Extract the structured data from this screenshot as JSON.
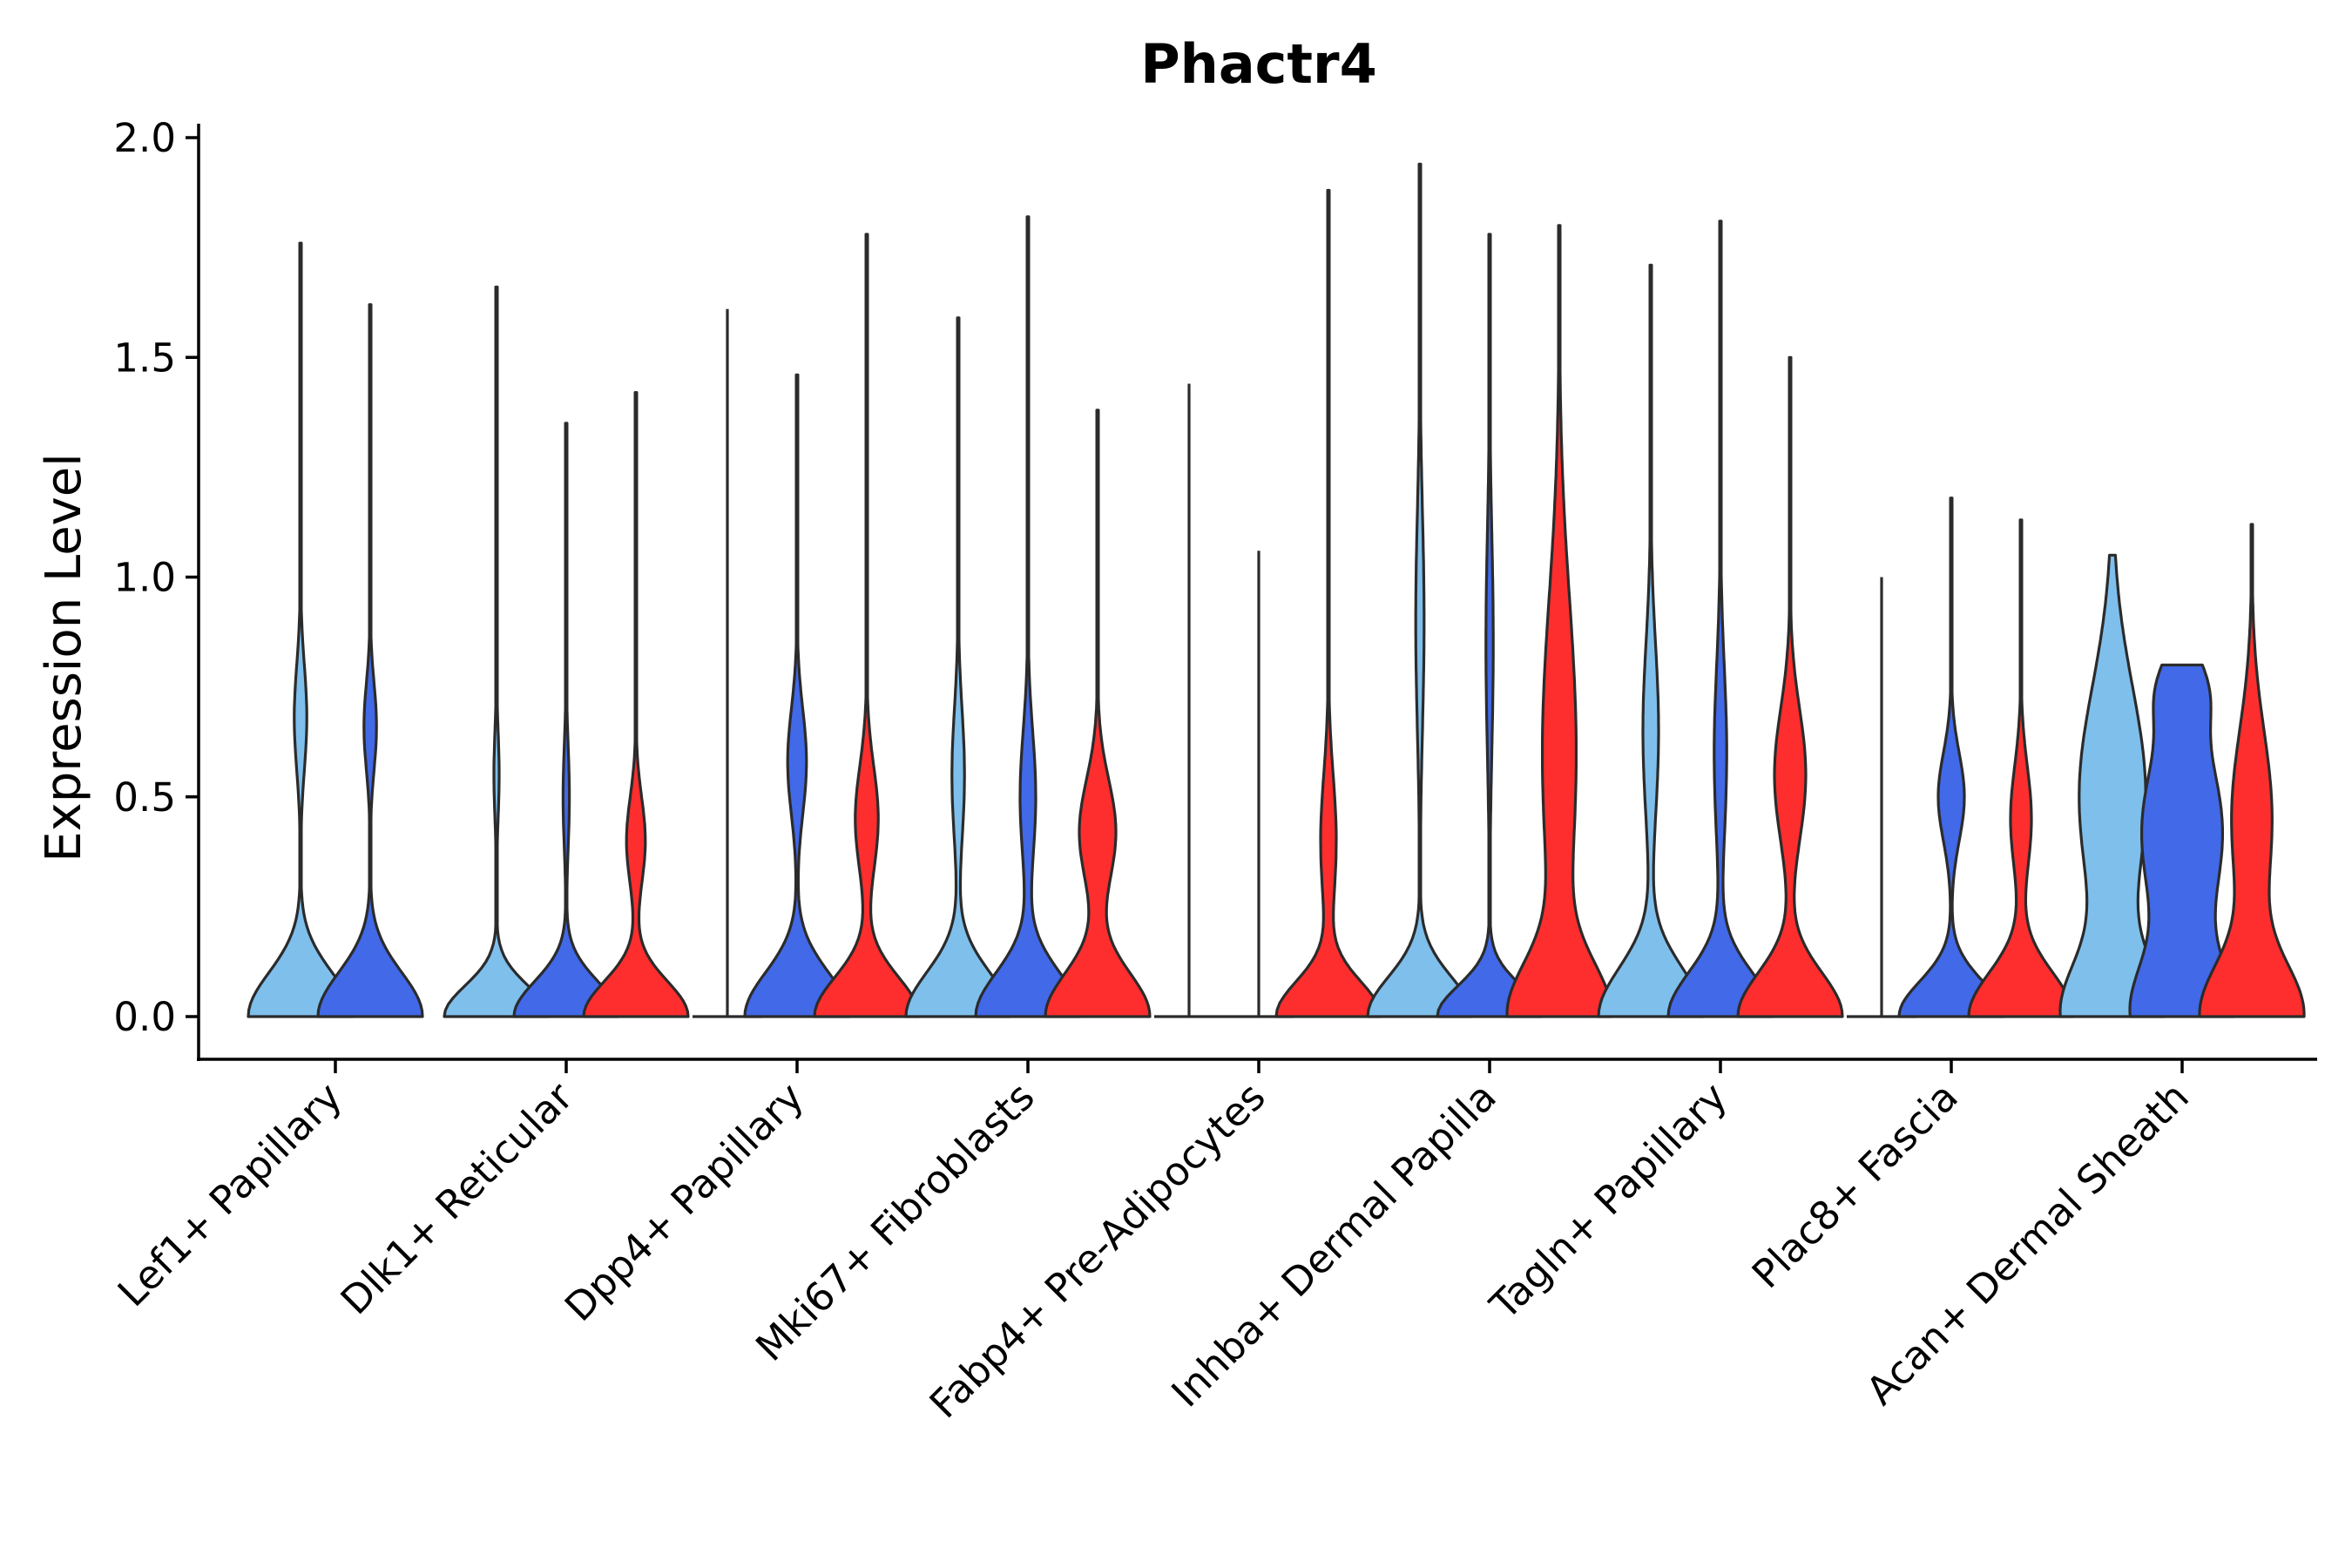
{
  "chart_data": {
    "type": "violin",
    "title": "Phactr4",
    "xlabel": "",
    "ylabel": "Expression Level",
    "ylim": [
      -0.1,
      2.02
    ],
    "yticks": [
      0.0,
      0.5,
      1.0,
      1.5,
      2.0
    ],
    "ytick_labels": [
      "0.0",
      "0.5",
      "1.0",
      "1.5",
      "2.0"
    ],
    "legend": "none",
    "colors": {
      "light_blue": "#7fbfec",
      "blue": "#4169e8",
      "red": "#ff2e2e"
    },
    "categories": [
      "Lef1+ Papillary",
      "Dlk1+ Reticular",
      "Dpp4+ Papillary",
      "Mki67+ Fibroblasts",
      "Fabp4+ Pre-Adipocytes",
      "Inhba+ Dermal Papilla",
      "Tagln+ Papillary",
      "Plac8+ Fascia",
      "Acan+ Dermal Sheath"
    ],
    "groups": [
      {
        "category": "Lef1+ Papillary",
        "violins": [
          {
            "color": "light_blue",
            "max": 1.76,
            "peaks": [
              [
                0.0,
                1.0,
                0.1
              ],
              [
                0.68,
                0.12,
                0.12
              ]
            ]
          },
          {
            "color": "blue",
            "max": 1.62,
            "peaks": [
              [
                0.0,
                1.0,
                0.1
              ],
              [
                0.66,
                0.12,
                0.1
              ]
            ]
          }
        ]
      },
      {
        "category": "Dlk1+ Reticular",
        "violins": [
          {
            "color": "light_blue",
            "max": 1.66,
            "peaks": [
              [
                0.0,
                1.0,
                0.07
              ],
              [
                0.55,
                0.05,
                0.1
              ]
            ]
          },
          {
            "color": "blue",
            "max": 1.35,
            "peaks": [
              [
                0.0,
                1.0,
                0.08
              ],
              [
                0.5,
                0.06,
                0.12
              ]
            ]
          },
          {
            "color": "red",
            "max": 1.42,
            "peaks": [
              [
                0.0,
                1.0,
                0.08
              ],
              [
                0.4,
                0.18,
                0.1
              ]
            ]
          }
        ]
      },
      {
        "category": "Dpp4+ Papillary",
        "violins": [
          {
            "color": "blue",
            "max": 1.61,
            "flat": true,
            "peaks": [
              [
                0.0,
                1.0,
                0.01
              ]
            ]
          },
          {
            "color": "blue",
            "max": 1.46,
            "peaks": [
              [
                0.0,
                1.0,
                0.1
              ],
              [
                0.58,
                0.18,
                0.12
              ]
            ]
          },
          {
            "color": "red",
            "max": 1.78,
            "peaks": [
              [
                0.0,
                1.0,
                0.09
              ],
              [
                0.45,
                0.22,
                0.12
              ]
            ]
          }
        ]
      },
      {
        "category": "Mki67+ Fibroblasts",
        "violins": [
          {
            "color": "light_blue",
            "max": 1.59,
            "peaks": [
              [
                0.0,
                1.0,
                0.1
              ],
              [
                0.55,
                0.12,
                0.15
              ]
            ]
          },
          {
            "color": "blue",
            "max": 1.82,
            "peaks": [
              [
                0.0,
                1.0,
                0.1
              ],
              [
                0.5,
                0.15,
                0.15
              ]
            ]
          },
          {
            "color": "red",
            "max": 1.38,
            "peaks": [
              [
                0.0,
                1.0,
                0.1
              ],
              [
                0.42,
                0.35,
                0.12
              ]
            ]
          }
        ]
      },
      {
        "category": "Fabp4+ Pre-Adipocytes",
        "violins": [
          {
            "color": "light_blue",
            "max": 1.44,
            "flat": true,
            "peaks": [
              [
                0.0,
                1.0,
                0.01
              ]
            ]
          },
          {
            "color": "light_blue",
            "max": 1.06,
            "flat": true,
            "peaks": [
              [
                0.0,
                1.0,
                0.01
              ]
            ]
          },
          {
            "color": "red",
            "max": 1.88,
            "peaks": [
              [
                0.0,
                1.0,
                0.08
              ],
              [
                0.4,
                0.15,
                0.15
              ]
            ]
          }
        ]
      },
      {
        "category": "Inhba+ Dermal Papilla",
        "violins": [
          {
            "color": "light_blue",
            "max": 1.94,
            "peaks": [
              [
                0.0,
                1.0,
                0.09
              ],
              [
                0.9,
                0.08,
                0.25
              ]
            ]
          },
          {
            "color": "blue",
            "max": 1.78,
            "peaks": [
              [
                0.0,
                1.0,
                0.07
              ],
              [
                0.85,
                0.07,
                0.25
              ]
            ]
          },
          {
            "color": "red",
            "max": 1.8,
            "peaks": [
              [
                0.0,
                1.0,
                0.12
              ],
              [
                0.6,
                0.35,
                0.35
              ]
            ]
          }
        ]
      },
      {
        "category": "Tagln+ Papillary",
        "violins": [
          {
            "color": "light_blue",
            "max": 1.71,
            "peaks": [
              [
                0.0,
                1.0,
                0.11
              ],
              [
                0.65,
                0.15,
                0.2
              ]
            ]
          },
          {
            "color": "blue",
            "max": 1.81,
            "peaks": [
              [
                0.0,
                1.0,
                0.1
              ],
              [
                0.6,
                0.12,
                0.2
              ]
            ]
          },
          {
            "color": "red",
            "max": 1.5,
            "peaks": [
              [
                0.0,
                1.0,
                0.1
              ],
              [
                0.55,
                0.3,
                0.15
              ]
            ]
          }
        ]
      },
      {
        "category": "Plac8+ Fascia",
        "violins": [
          {
            "color": "light_blue",
            "max": 1.0,
            "flat": true,
            "peaks": [
              [
                0.0,
                1.0,
                0.01
              ]
            ]
          },
          {
            "color": "blue",
            "max": 1.18,
            "peaks": [
              [
                0.0,
                1.0,
                0.08
              ],
              [
                0.5,
                0.25,
                0.1
              ]
            ]
          },
          {
            "color": "red",
            "max": 1.13,
            "peaks": [
              [
                0.0,
                1.0,
                0.1
              ],
              [
                0.45,
                0.2,
                0.12
              ]
            ]
          }
        ]
      },
      {
        "category": "Acan+ Dermal Sheath",
        "violins": [
          {
            "color": "light_blue",
            "max": 1.05,
            "peaks": [
              [
                0.0,
                1.0,
                0.12
              ],
              [
                0.5,
                0.7,
                0.25
              ]
            ]
          },
          {
            "color": "blue",
            "max": 0.8,
            "peaks": [
              [
                0.0,
                1.0,
                0.12
              ],
              [
                0.42,
                0.85,
                0.2
              ],
              [
                0.75,
                0.35,
                0.08
              ]
            ]
          },
          {
            "color": "red",
            "max": 1.12,
            "peaks": [
              [
                0.0,
                1.0,
                0.12
              ],
              [
                0.45,
                0.4,
                0.2
              ]
            ]
          }
        ]
      }
    ]
  }
}
